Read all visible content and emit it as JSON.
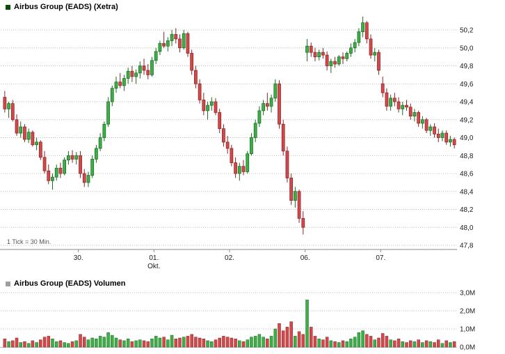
{
  "header": {
    "price_legend": "Airbus Group (EADS) (Xetra)",
    "volume_legend": "Airbus Group (EADS) Volumen",
    "tick_note": "1 Tick = 30 Min."
  },
  "colors": {
    "up_fill": "#3fae49",
    "up_stroke": "#176c1e",
    "down_fill": "#d2494b",
    "down_stroke": "#8c2323",
    "grid": "#b9b9b9",
    "axis": "#8a8a8a",
    "text": "#1a1a1a",
    "note_text": "#555555",
    "price_swatch": "#0a4a0a",
    "volume_swatch": "#9e9e9e",
    "background": "#ffffff"
  },
  "chart_data": {
    "type": "candlestick",
    "title": "Airbus Group (EADS) (Xetra)",
    "subchart": {
      "type": "bar",
      "title": "Airbus Group (EADS) Volumen",
      "unit": "millions"
    },
    "tick_interval": "30 Min",
    "y_axis": {
      "range": [
        47.8,
        50.2
      ],
      "ticks": [
        {
          "value": 50.2,
          "label": "50,2"
        },
        {
          "value": 50.0,
          "label": "50,0"
        },
        {
          "value": 49.8,
          "label": "49,8"
        },
        {
          "value": 49.6,
          "label": "49,6"
        },
        {
          "value": 49.4,
          "label": "49,4"
        },
        {
          "value": 49.2,
          "label": "49,2"
        },
        {
          "value": 49.0,
          "label": "49,0"
        },
        {
          "value": 48.8,
          "label": "48,8"
        },
        {
          "value": 48.6,
          "label": "48,6"
        },
        {
          "value": 48.4,
          "label": "48,4"
        },
        {
          "value": 48.2,
          "label": "48,2"
        },
        {
          "value": 48.0,
          "label": "48,0"
        },
        {
          "value": 47.8,
          "label": "47,8"
        }
      ]
    },
    "volume_axis": {
      "range": [
        0,
        3
      ],
      "ticks": [
        {
          "value": 3,
          "label": "3,0M"
        },
        {
          "value": 2,
          "label": "2,0M"
        },
        {
          "value": 1,
          "label": "1,0M"
        },
        {
          "value": 0,
          "label": "0,0M"
        }
      ]
    },
    "x_axis": {
      "labels": [
        {
          "index": 19,
          "line1": "30.",
          "line2": ""
        },
        {
          "index": 38,
          "line1": "01.",
          "line2": "Okt."
        },
        {
          "index": 57,
          "line1": "02.",
          "line2": ""
        },
        {
          "index": 76,
          "line1": "06.",
          "line2": ""
        },
        {
          "index": 95,
          "line1": "07.",
          "line2": ""
        }
      ],
      "day_start_indices": [
        0,
        19,
        38,
        57,
        76,
        95
      ]
    },
    "ohlcv_format": "open,high,low,close,volume_millions",
    "ohlcv": [
      [
        49.45,
        49.52,
        49.28,
        49.32,
        0.45
      ],
      [
        49.32,
        49.4,
        49.22,
        49.38,
        0.3
      ],
      [
        49.38,
        49.42,
        49.18,
        49.2,
        0.35
      ],
      [
        49.2,
        49.26,
        49.02,
        49.05,
        0.5
      ],
      [
        49.05,
        49.18,
        49.0,
        49.12,
        0.25
      ],
      [
        49.12,
        49.15,
        48.95,
        48.98,
        0.3
      ],
      [
        48.98,
        49.1,
        48.94,
        49.06,
        0.2
      ],
      [
        49.06,
        49.08,
        48.9,
        48.92,
        0.35
      ],
      [
        48.92,
        49.0,
        48.86,
        48.95,
        0.25
      ],
      [
        48.95,
        48.97,
        48.75,
        48.78,
        0.4
      ],
      [
        48.78,
        48.85,
        48.6,
        48.63,
        0.55
      ],
      [
        48.63,
        48.7,
        48.48,
        48.52,
        0.6
      ],
      [
        48.52,
        48.6,
        48.42,
        48.56,
        0.45
      ],
      [
        48.56,
        48.7,
        48.52,
        48.66,
        0.3
      ],
      [
        48.66,
        48.72,
        48.55,
        48.6,
        0.35
      ],
      [
        48.6,
        48.78,
        48.58,
        48.75,
        0.25
      ],
      [
        48.75,
        48.85,
        48.7,
        48.8,
        0.2
      ],
      [
        48.8,
        48.86,
        48.72,
        48.76,
        0.3
      ],
      [
        48.76,
        48.84,
        48.7,
        48.8,
        0.35
      ],
      [
        48.8,
        48.85,
        48.55,
        48.6,
        0.7
      ],
      [
        48.6,
        48.65,
        48.45,
        48.5,
        0.55
      ],
      [
        48.5,
        48.62,
        48.45,
        48.58,
        0.4
      ],
      [
        48.58,
        48.8,
        48.55,
        48.76,
        0.5
      ],
      [
        48.76,
        48.92,
        48.72,
        48.88,
        0.45
      ],
      [
        48.88,
        49.05,
        48.85,
        49.0,
        0.6
      ],
      [
        49.0,
        49.18,
        48.96,
        49.15,
        0.55
      ],
      [
        49.15,
        49.45,
        49.12,
        49.4,
        0.8
      ],
      [
        49.4,
        49.58,
        49.35,
        49.55,
        0.65
      ],
      [
        49.55,
        49.68,
        49.5,
        49.62,
        0.5
      ],
      [
        49.62,
        49.72,
        49.55,
        49.58,
        0.4
      ],
      [
        49.58,
        49.7,
        49.52,
        49.66,
        0.35
      ],
      [
        49.66,
        49.78,
        49.6,
        49.74,
        0.45
      ],
      [
        49.74,
        49.8,
        49.62,
        49.68,
        0.3
      ],
      [
        49.68,
        49.76,
        49.6,
        49.72,
        0.35
      ],
      [
        49.72,
        49.85,
        49.66,
        49.8,
        0.4
      ],
      [
        49.8,
        49.88,
        49.7,
        49.75,
        0.35
      ],
      [
        49.75,
        49.82,
        49.65,
        49.7,
        0.3
      ],
      [
        49.7,
        49.9,
        49.68,
        49.86,
        0.45
      ],
      [
        49.86,
        50.0,
        49.82,
        49.96,
        0.6
      ],
      [
        49.96,
        50.08,
        49.92,
        50.05,
        0.5
      ],
      [
        50.05,
        50.18,
        50.0,
        50.02,
        0.55
      ],
      [
        50.02,
        50.12,
        49.96,
        50.08,
        0.4
      ],
      [
        50.08,
        50.2,
        50.02,
        50.15,
        0.65
      ],
      [
        50.15,
        50.22,
        50.05,
        50.1,
        0.45
      ],
      [
        50.1,
        50.15,
        49.95,
        50.0,
        0.5
      ],
      [
        50.0,
        50.2,
        49.98,
        50.16,
        0.55
      ],
      [
        50.16,
        50.18,
        49.9,
        49.94,
        0.6
      ],
      [
        49.94,
        49.98,
        49.7,
        49.75,
        0.7
      ],
      [
        49.75,
        49.8,
        49.55,
        49.6,
        0.55
      ],
      [
        49.6,
        49.65,
        49.38,
        49.42,
        0.5
      ],
      [
        49.42,
        49.5,
        49.25,
        49.3,
        0.45
      ],
      [
        49.3,
        49.4,
        49.2,
        49.36,
        0.35
      ],
      [
        49.36,
        49.45,
        49.3,
        49.4,
        0.3
      ],
      [
        49.4,
        49.44,
        49.25,
        49.28,
        0.4
      ],
      [
        49.28,
        49.32,
        49.05,
        49.1,
        0.5
      ],
      [
        49.1,
        49.15,
        48.9,
        48.95,
        0.6
      ],
      [
        48.95,
        49.02,
        48.82,
        48.88,
        0.55
      ],
      [
        48.88,
        48.92,
        48.68,
        48.72,
        0.5
      ],
      [
        48.72,
        48.78,
        48.55,
        48.6,
        0.45
      ],
      [
        48.6,
        48.72,
        48.52,
        48.68,
        0.35
      ],
      [
        48.68,
        48.75,
        48.58,
        48.62,
        0.3
      ],
      [
        48.62,
        48.85,
        48.6,
        48.82,
        0.4
      ],
      [
        48.82,
        49.05,
        48.8,
        49.0,
        0.55
      ],
      [
        49.0,
        49.2,
        48.95,
        49.16,
        0.6
      ],
      [
        49.16,
        49.35,
        49.12,
        49.3,
        0.7
      ],
      [
        49.3,
        49.42,
        49.25,
        49.38,
        0.55
      ],
      [
        49.38,
        49.5,
        49.3,
        49.35,
        0.45
      ],
      [
        49.35,
        49.48,
        49.28,
        49.44,
        0.6
      ],
      [
        49.44,
        49.65,
        49.4,
        49.6,
        1.0
      ],
      [
        49.6,
        49.64,
        49.1,
        49.15,
        1.3
      ],
      [
        49.15,
        49.2,
        48.8,
        48.85,
        0.9
      ],
      [
        48.85,
        48.9,
        48.5,
        48.55,
        1.1
      ],
      [
        48.55,
        48.6,
        48.25,
        48.3,
        1.4
      ],
      [
        48.3,
        48.45,
        48.22,
        48.4,
        0.6
      ],
      [
        48.4,
        48.42,
        48.05,
        48.1,
        0.85
      ],
      [
        48.1,
        48.18,
        47.92,
        48.0,
        0.7
      ],
      [
        49.95,
        50.1,
        49.85,
        50.02,
        2.6
      ],
      [
        50.02,
        50.06,
        49.9,
        49.95,
        1.1
      ],
      [
        49.95,
        50.0,
        49.85,
        49.9,
        0.6
      ],
      [
        49.9,
        49.98,
        49.86,
        49.95,
        0.45
      ],
      [
        49.95,
        50.0,
        49.88,
        49.92,
        0.4
      ],
      [
        49.92,
        49.96,
        49.75,
        49.8,
        0.55
      ],
      [
        49.8,
        49.88,
        49.72,
        49.85,
        0.35
      ],
      [
        49.85,
        49.9,
        49.78,
        49.82,
        0.3
      ],
      [
        49.82,
        49.92,
        49.8,
        49.9,
        0.25
      ],
      [
        49.9,
        49.95,
        49.82,
        49.88,
        0.35
      ],
      [
        49.88,
        49.96,
        49.85,
        49.94,
        0.3
      ],
      [
        49.94,
        50.05,
        49.9,
        50.0,
        0.45
      ],
      [
        50.0,
        50.1,
        49.95,
        50.06,
        0.55
      ],
      [
        50.06,
        50.22,
        50.02,
        50.18,
        0.8
      ],
      [
        50.18,
        50.35,
        50.12,
        50.28,
        0.9
      ],
      [
        50.28,
        50.3,
        50.05,
        50.1,
        0.7
      ],
      [
        50.1,
        50.15,
        49.88,
        49.92,
        0.6
      ],
      [
        49.92,
        50.0,
        49.85,
        49.95,
        0.4
      ],
      [
        49.95,
        49.98,
        49.7,
        49.75,
        0.5
      ],
      [
        49.6,
        49.68,
        49.45,
        49.5,
        0.75
      ],
      [
        49.5,
        49.55,
        49.3,
        49.35,
        0.6
      ],
      [
        49.35,
        49.48,
        49.3,
        49.44,
        0.4
      ],
      [
        49.44,
        49.5,
        49.35,
        49.4,
        0.35
      ],
      [
        49.4,
        49.45,
        49.28,
        49.32,
        0.45
      ],
      [
        49.32,
        49.4,
        49.25,
        49.36,
        0.3
      ],
      [
        49.36,
        49.42,
        49.3,
        49.34,
        0.25
      ],
      [
        49.34,
        49.38,
        49.2,
        49.24,
        0.35
      ],
      [
        49.24,
        49.32,
        49.18,
        49.28,
        0.3
      ],
      [
        49.28,
        49.3,
        49.12,
        49.16,
        0.4
      ],
      [
        49.16,
        49.24,
        49.1,
        49.2,
        0.25
      ],
      [
        49.2,
        49.22,
        49.05,
        49.08,
        0.35
      ],
      [
        49.08,
        49.15,
        49.02,
        49.12,
        0.3
      ],
      [
        49.12,
        49.16,
        49.0,
        49.04,
        0.25
      ],
      [
        49.04,
        49.1,
        48.95,
        49.0,
        0.4
      ],
      [
        49.0,
        49.08,
        48.96,
        49.05,
        0.2
      ],
      [
        49.05,
        49.08,
        48.92,
        48.95,
        0.35
      ],
      [
        48.95,
        49.02,
        48.9,
        48.98,
        0.25
      ],
      [
        48.98,
        49.0,
        48.88,
        48.92,
        0.3
      ]
    ]
  }
}
